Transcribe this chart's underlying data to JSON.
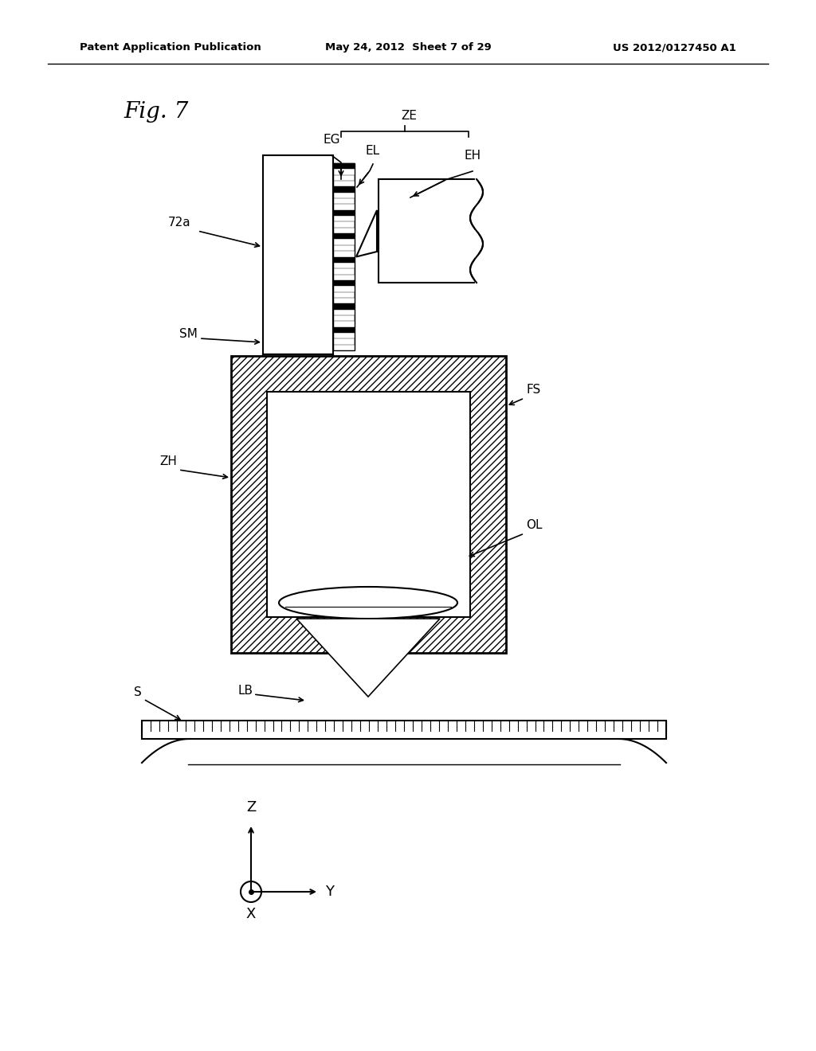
{
  "bg_color": "#ffffff",
  "header_left": "Patent Application Publication",
  "header_center": "May 24, 2012  Sheet 7 of 29",
  "header_right": "US 2012/0127450 A1",
  "fig_label": "Fig. 7"
}
